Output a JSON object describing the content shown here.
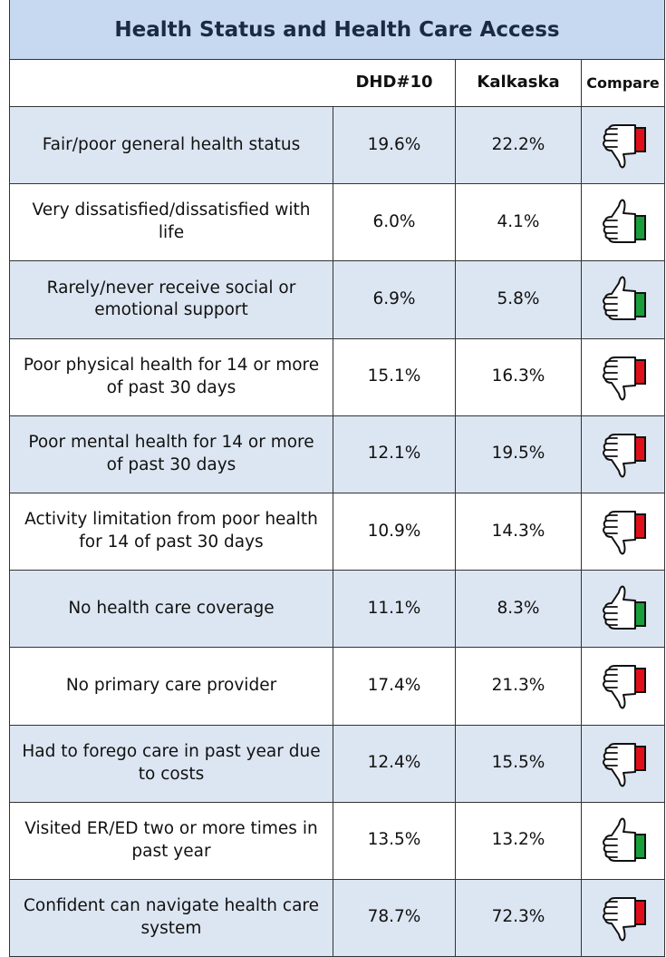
{
  "header": {
    "title": "Health Status and Health Care Access"
  },
  "table": {
    "columns": [
      "",
      "DHD#10",
      "Kalkaska",
      "Compare"
    ],
    "rows": [
      {
        "label": "Fair/poor general health status",
        "dhd": "19.6%",
        "county": "22.2%",
        "compare": "down"
      },
      {
        "label": "Very dissatisfied/dissatisfied with life",
        "dhd": "6.0%",
        "county": "4.1%",
        "compare": "up"
      },
      {
        "label": "Rarely/never receive social or emotional support",
        "dhd": "6.9%",
        "county": "5.8%",
        "compare": "up"
      },
      {
        "label": "Poor physical health for 14 or more of past 30 days",
        "dhd": "15.1%",
        "county": "16.3%",
        "compare": "down"
      },
      {
        "label": "Poor mental health for 14 or more of past 30 days",
        "dhd": "12.1%",
        "county": "19.5%",
        "compare": "down"
      },
      {
        "label": "Activity limitation from poor health for 14 of past 30 days",
        "dhd": "10.9%",
        "county": "14.3%",
        "compare": "down"
      },
      {
        "label": "No health care coverage",
        "dhd": "11.1%",
        "county": "8.3%",
        "compare": "up"
      },
      {
        "label": "No primary care provider",
        "dhd": "17.4%",
        "county": "21.3%",
        "compare": "down"
      },
      {
        "label": "Had to forego care in past year due to costs",
        "dhd": "12.4%",
        "county": "15.5%",
        "compare": "down"
      },
      {
        "label": "Visited ER/ED two or more times in past year",
        "dhd": "13.5%",
        "county": "13.2%",
        "compare": "up"
      },
      {
        "label": "Confident can navigate health care system",
        "dhd": "78.7%",
        "county": "72.3%",
        "compare": "down"
      }
    ]
  }
}
